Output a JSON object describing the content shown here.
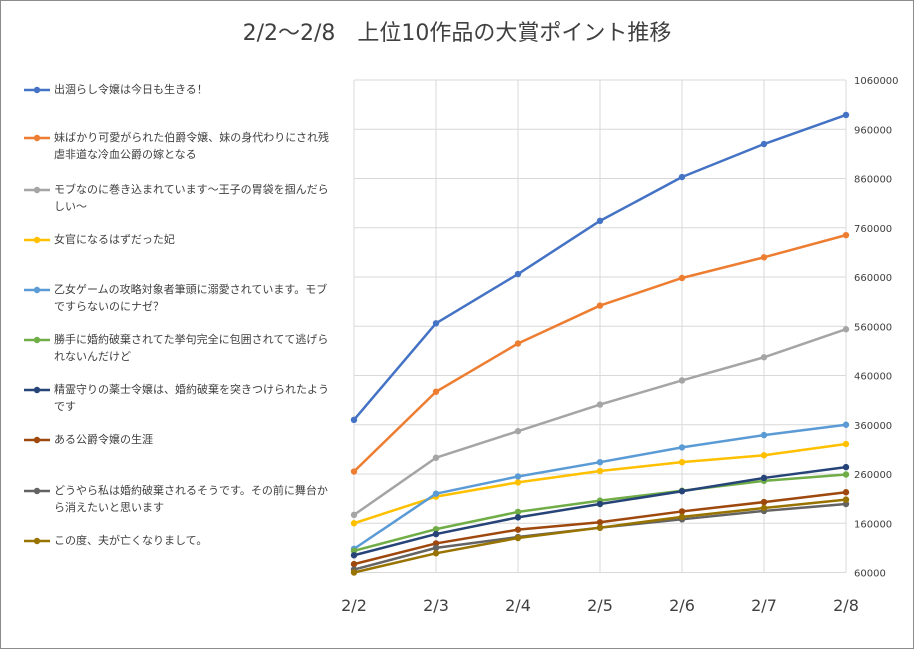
{
  "chart_data": {
    "type": "line",
    "title": "2/2〜2/8　上位10作品の大賞ポイント推移",
    "xlabel": "",
    "ylabel": "",
    "categories": [
      "2/2",
      "2/3",
      "2/4",
      "2/5",
      "2/6",
      "2/7",
      "2/8"
    ],
    "ylim": [
      60000,
      1060000
    ],
    "yticks": [
      "60000",
      "160000",
      "260000",
      "360000",
      "460000",
      "560000",
      "660000",
      "760000",
      "860000",
      "960000",
      "1060000"
    ],
    "y_axis_side": "right",
    "grid": true,
    "legend_placement": "left",
    "series": [
      {
        "name": "出涸らし令嬢は今日も生きる！",
        "color": "#4472C4",
        "values": [
          370000,
          566000,
          666000,
          774000,
          863000,
          930000,
          989000
        ]
      },
      {
        "name": "妹ばかり可愛がられた伯爵令嬢、妹の身代わりにされ残虐非道な冷血公爵の嫁となる",
        "color": "#ED7D31",
        "values": [
          265000,
          427000,
          525000,
          602000,
          658000,
          700000,
          745000
        ]
      },
      {
        "name": "モブなのに巻き込まれています〜王子の胃袋を掴んだらしい〜",
        "color": "#A5A5A5",
        "values": [
          177000,
          293000,
          347000,
          401000,
          450000,
          497000,
          554000
        ]
      },
      {
        "name": "女官になるはずだった妃",
        "color": "#FFC000",
        "values": [
          160000,
          214000,
          243000,
          266000,
          284000,
          298000,
          321000
        ]
      },
      {
        "name": "乙女ゲームの攻略対象者筆頭に溺愛されています。モブですらないのにナゼ？",
        "color": "#5B9BD5",
        "values": [
          108000,
          220000,
          255000,
          284000,
          314000,
          339000,
          360000
        ]
      },
      {
        "name": "勝手に婚約破棄されてた挙句完全に包囲されてて逃げられないんだけど",
        "color": "#70AD47",
        "values": [
          104000,
          148000,
          183000,
          206000,
          226000,
          246000,
          259000
        ]
      },
      {
        "name": "精霊守りの薬士令嬢は、婚約破棄を突きつけられたようです",
        "color": "#264478",
        "values": [
          95000,
          138000,
          172000,
          199000,
          225000,
          252000,
          274000
        ]
      },
      {
        "name": "ある公爵令嬢の生涯",
        "color": "#9E480E",
        "values": [
          77000,
          119000,
          147000,
          162000,
          184000,
          203000,
          223000
        ]
      },
      {
        "name": "どうやら私は婚約破棄されるそうです。その前に舞台から消えたいと思います",
        "color": "#636363",
        "values": [
          66000,
          110000,
          132000,
          151000,
          168000,
          185000,
          199000
        ]
      },
      {
        "name": "この度、夫が亡くなりまして。",
        "color": "#997300",
        "values": [
          60000,
          99000,
          130000,
          151000,
          173000,
          191000,
          208000
        ]
      }
    ]
  }
}
